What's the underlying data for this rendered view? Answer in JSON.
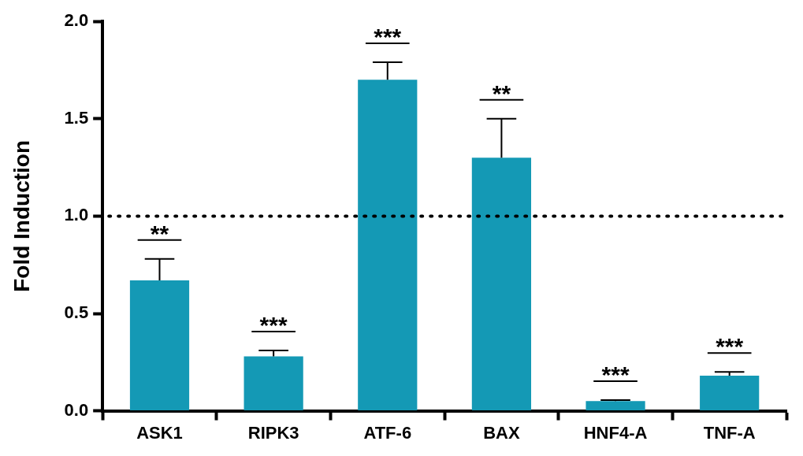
{
  "chart_data": {
    "type": "bar",
    "ylabel": "Fold Induction",
    "categories": [
      "ASK1",
      "RIPK3",
      "ATF-6",
      "BAX",
      "HNF4-A",
      "TNF-A"
    ],
    "values": [
      0.67,
      0.28,
      1.7,
      1.3,
      0.05,
      0.18
    ],
    "color": "#1499b5",
    "errors": [
      [
        0.67,
        0.78
      ],
      [
        0.28,
        0.31
      ],
      [
        1.7,
        1.79
      ],
      [
        1.3,
        1.5
      ],
      [
        0.05,
        0.055
      ],
      [
        0.18,
        0.2
      ]
    ],
    "ylim": [
      0,
      2.0
    ],
    "yticks": [
      {
        "value": 0,
        "label": "0.0"
      },
      {
        "value": 0.5,
        "label": "0.5"
      },
      {
        "value": 1,
        "label": "1.0"
      },
      {
        "value": 1.5,
        "label": "1.5"
      },
      {
        "value": 2,
        "label": "2.0"
      }
    ],
    "grid": false,
    "legend": false,
    "ref_lines": [
      {
        "axis": "y",
        "value": 1,
        "color": "#000000",
        "line_style": "dotted"
      }
    ],
    "annotations": [
      "**",
      "***",
      "***",
      "**",
      "***",
      "***"
    ]
  }
}
